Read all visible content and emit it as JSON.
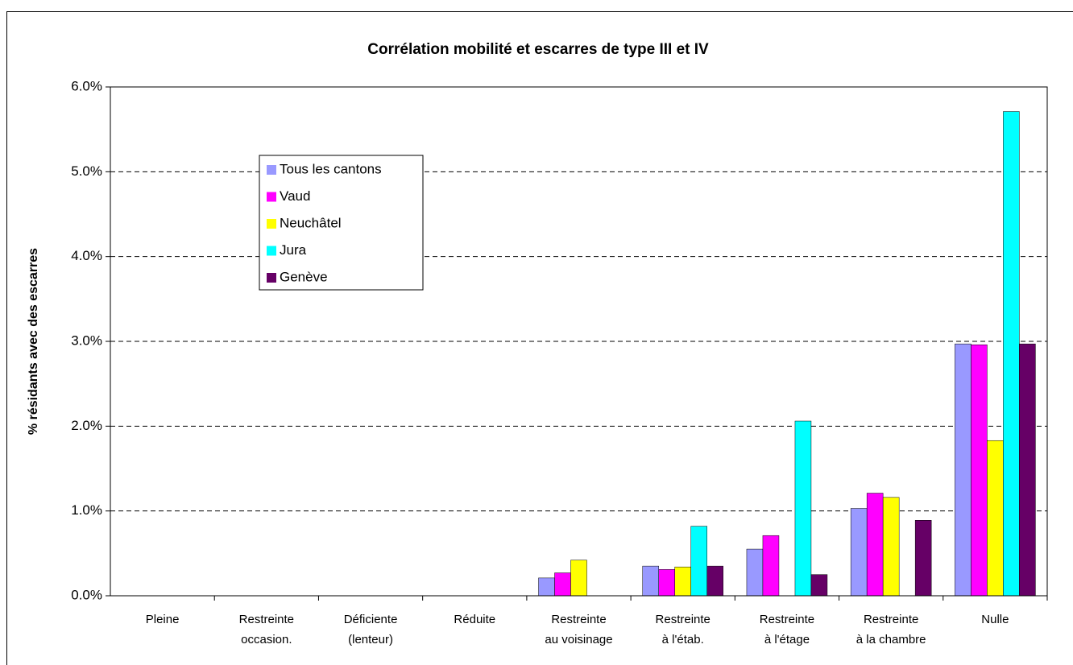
{
  "chart_data": {
    "type": "bar",
    "title": "Corrélation mobilité et escarres de type III et IV",
    "y_label": "% résidants avec des escarres",
    "categories": [
      [
        "Pleine"
      ],
      [
        "Restreinte",
        "occasion."
      ],
      [
        "Déficiente",
        "(lenteur)"
      ],
      [
        "Réduite"
      ],
      [
        "Restreinte",
        "au voisinage"
      ],
      [
        "Restreinte",
        "à l'étab."
      ],
      [
        "Restreinte",
        "à l'étage"
      ],
      [
        "Restreinte",
        "à la chambre"
      ],
      [
        "Nulle"
      ]
    ],
    "series": [
      {
        "name": "Tous les cantons",
        "color": "#9999ff",
        "values": [
          0,
          0,
          0,
          0,
          0.21,
          0.35,
          0.55,
          1.03,
          2.97
        ]
      },
      {
        "name": "Vaud",
        "color": "#ff00ff",
        "values": [
          0,
          0,
          0,
          0,
          0.27,
          0.31,
          0.71,
          1.21,
          2.96
        ]
      },
      {
        "name": "Neuchâtel",
        "color": "#ffff00",
        "values": [
          0,
          0,
          0,
          0,
          0.42,
          0.34,
          0,
          1.16,
          1.83
        ]
      },
      {
        "name": "Jura",
        "color": "#00ffff",
        "values": [
          0,
          0,
          0,
          0,
          0,
          0.82,
          2.06,
          0,
          5.71
        ]
      },
      {
        "name": "Genève",
        "color": "#660066",
        "values": [
          0,
          0,
          0,
          0,
          0,
          0.35,
          0.25,
          0.89,
          2.97
        ]
      }
    ],
    "ylim": [
      0,
      6
    ],
    "yticks": [
      {
        "value": 0,
        "label": "0.0%"
      },
      {
        "value": 1,
        "label": "1.0%"
      },
      {
        "value": 2,
        "label": "2.0%"
      },
      {
        "value": 3,
        "label": "3.0%"
      },
      {
        "value": 4,
        "label": "4.0%"
      },
      {
        "value": 5,
        "label": "5.0%"
      },
      {
        "value": 6,
        "label": "6.0%"
      }
    ],
    "grid": true
  }
}
